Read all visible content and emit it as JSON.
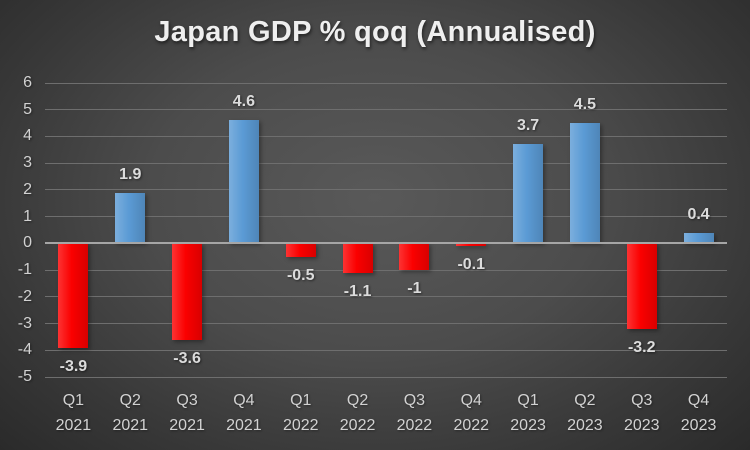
{
  "chart_data": {
    "type": "bar",
    "title": "Japan GDP % qoq (Annualised)",
    "categories": [
      {
        "quarter": "Q1",
        "year": "2021"
      },
      {
        "quarter": "Q2",
        "year": "2021"
      },
      {
        "quarter": "Q3",
        "year": "2021"
      },
      {
        "quarter": "Q4",
        "year": "2021"
      },
      {
        "quarter": "Q1",
        "year": "2022"
      },
      {
        "quarter": "Q2",
        "year": "2022"
      },
      {
        "quarter": "Q3",
        "year": "2022"
      },
      {
        "quarter": "Q4",
        "year": "2022"
      },
      {
        "quarter": "Q1",
        "year": "2023"
      },
      {
        "quarter": "Q2",
        "year": "2023"
      },
      {
        "quarter": "Q3",
        "year": "2023"
      },
      {
        "quarter": "Q4",
        "year": "2023"
      }
    ],
    "values": [
      -3.9,
      1.9,
      -3.6,
      4.6,
      -0.5,
      -1.1,
      -1,
      -0.1,
      3.7,
      4.5,
      -3.2,
      0.4
    ],
    "value_labels": [
      "-3.9",
      "1.9",
      "-3.6",
      "4.6",
      "-0.5",
      "-1.1",
      "-1",
      "-0.1",
      "3.7",
      "4.5",
      "-3.2",
      "0.4"
    ],
    "xlabel": "",
    "ylabel": "",
    "ylim": [
      -5,
      6
    ],
    "y_ticks": [
      6,
      5,
      4,
      3,
      2,
      1,
      0,
      -1,
      -2,
      -3,
      -4,
      -5
    ],
    "grid": true,
    "legend": false,
    "colors": {
      "positive": "#5b9bd5",
      "negative": "#fb0000",
      "gridline": "#6e6e6e",
      "zero_line": "#a6a6a6",
      "axis_label": "#d2d2d2",
      "data_label": "#dcdcdc",
      "title": "#efefef"
    }
  }
}
